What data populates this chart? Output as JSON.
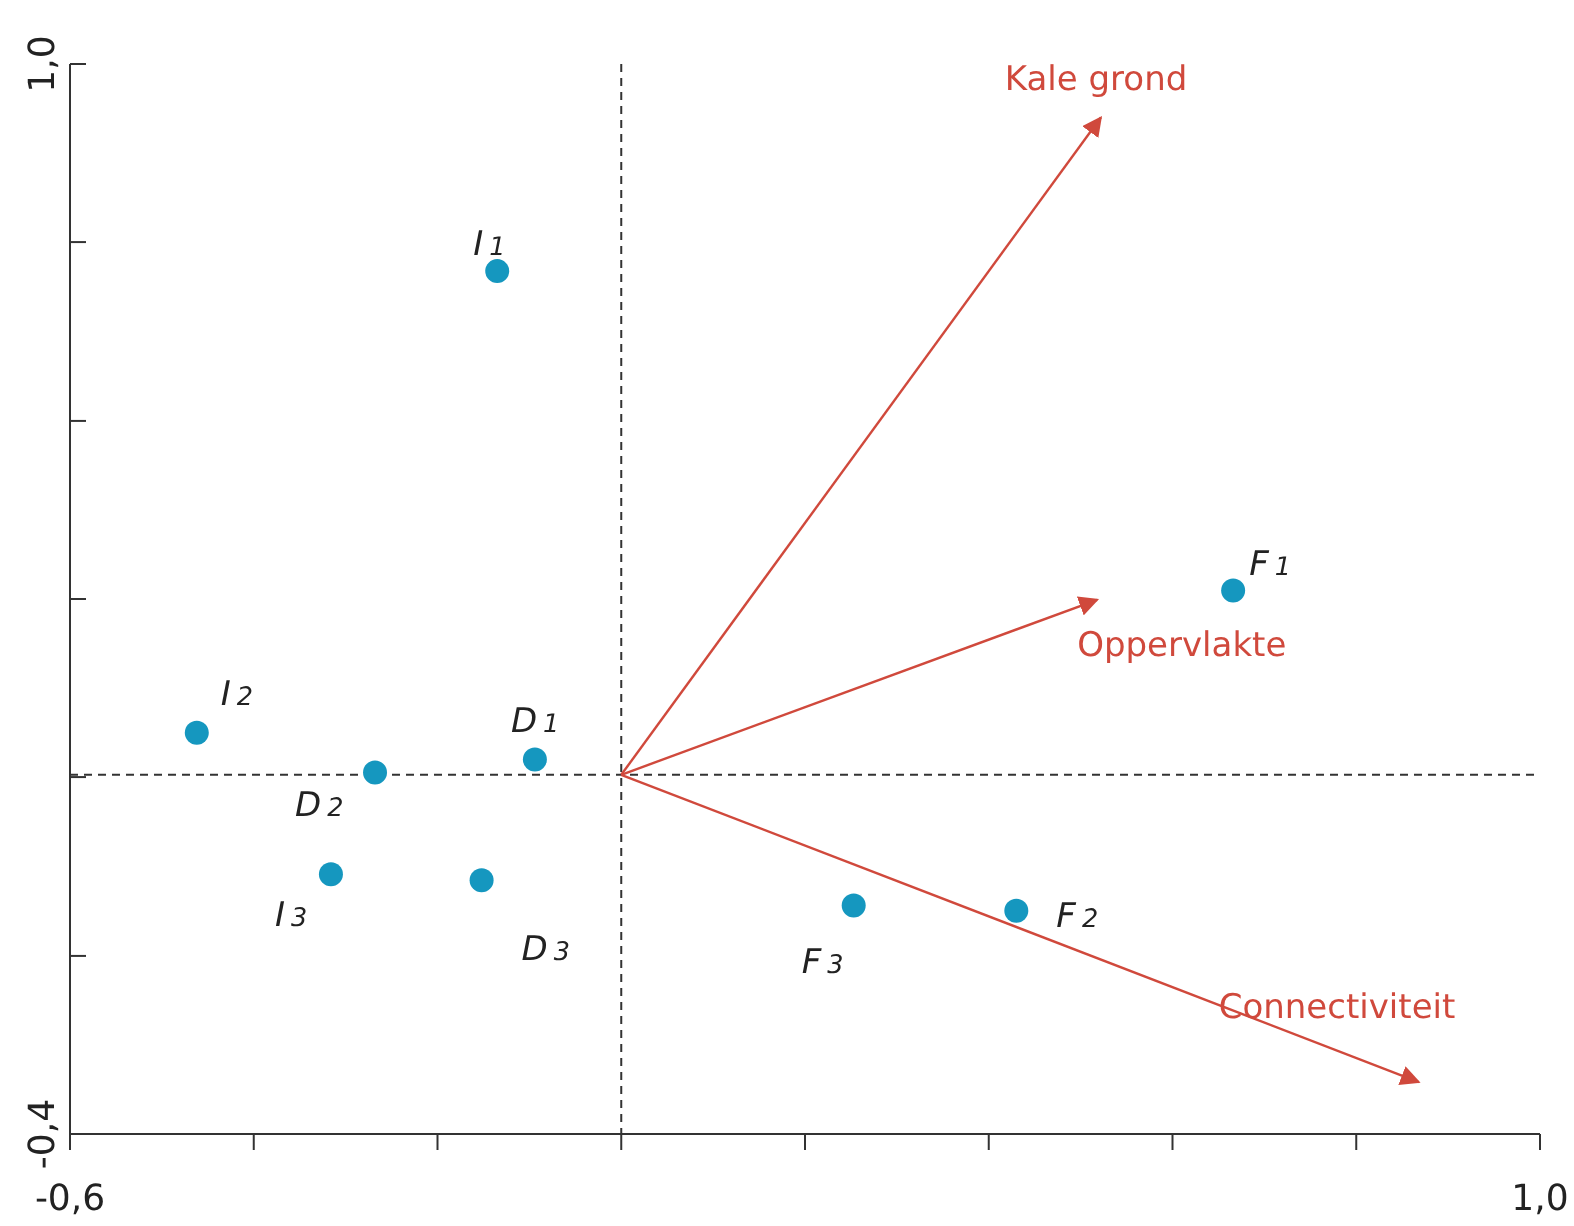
{
  "chart_data": {
    "type": "scatter",
    "marker": "circle",
    "xlim": [
      -0.6,
      1.0
    ],
    "ylim": [
      -0.4,
      1.0
    ],
    "xticks": [
      {
        "value": -0.6,
        "label": "-0,6"
      },
      {
        "value": -0.4,
        "label": null
      },
      {
        "value": -0.2,
        "label": null
      },
      {
        "value": 0,
        "label": null
      },
      {
        "value": 0.2,
        "label": null
      },
      {
        "value": 0.4,
        "label": null
      },
      {
        "value": 0.6,
        "label": null
      },
      {
        "value": 0.8,
        "label": null
      },
      {
        "value": 1.0,
        "label": "1,0"
      }
    ],
    "yticks": [
      {
        "value": -0.4,
        "label": "-0,4"
      },
      {
        "value": -0.167,
        "label": null
      },
      {
        "value": 0.067,
        "label": null
      },
      {
        "value": 0.3,
        "label": null
      },
      {
        "value": 0.533,
        "label": null
      },
      {
        "value": 0.767,
        "label": null
      },
      {
        "value": 1.0,
        "label": "1,0"
      }
    ],
    "ref_lines": [
      {
        "axis": "x",
        "value": 0,
        "line_style": "dashed",
        "color": "#333333"
      },
      {
        "axis": "y",
        "value": 0.07,
        "line_style": "dashed",
        "color": "#333333"
      }
    ],
    "series": [
      {
        "name": "I$_{1}$",
        "color": "#1597bf",
        "x": [
          -0.135
        ],
        "values": [
          0.729
        ]
      },
      {
        "name": "I$_{2}$",
        "color": "#1597bf",
        "x": [
          -0.462
        ],
        "values": [
          0.125
        ]
      },
      {
        "name": "D$_{2}$",
        "color": "#1597bf",
        "x": [
          -0.268
        ],
        "values": [
          0.073
        ]
      },
      {
        "name": "D$_{1}$",
        "color": "#1597bf",
        "x": [
          -0.094
        ],
        "values": [
          0.09
        ]
      },
      {
        "name": "I$_{3}$",
        "color": "#1597bf",
        "x": [
          -0.316
        ],
        "values": [
          -0.06
        ]
      },
      {
        "name": "D$_{3}$",
        "color": "#1597bf",
        "x": [
          -0.152
        ],
        "values": [
          -0.068
        ]
      },
      {
        "name": "F$_{3}$",
        "color": "#1597bf",
        "x": [
          0.253
        ],
        "values": [
          -0.101
        ]
      },
      {
        "name": "F$_{2}$",
        "color": "#1597bf",
        "x": [
          0.43
        ],
        "values": [
          -0.108
        ]
      },
      {
        "name": "F$_{1}$",
        "color": "#1597bf",
        "x": [
          0.666
        ],
        "values": [
          0.311
        ]
      },
      {
        "type": "line",
        "marker": "none",
        "name": "Kale grond",
        "color": "#d0493c",
        "x": [
          0,
          0.522
        ],
        "values": [
          0.07,
          0.93
        ]
      },
      {
        "type": "line",
        "marker": "none",
        "name": "Oppervlakte",
        "color": "#d0493c",
        "x": [
          0,
          0.518
        ],
        "values": [
          0.07,
          0.299
        ]
      },
      {
        "type": "line",
        "marker": "none",
        "name": "Connectiviteit",
        "color": "#d0493c",
        "x": [
          0,
          0.868
        ],
        "values": [
          0.07,
          -0.332
        ]
      }
    ]
  }
}
